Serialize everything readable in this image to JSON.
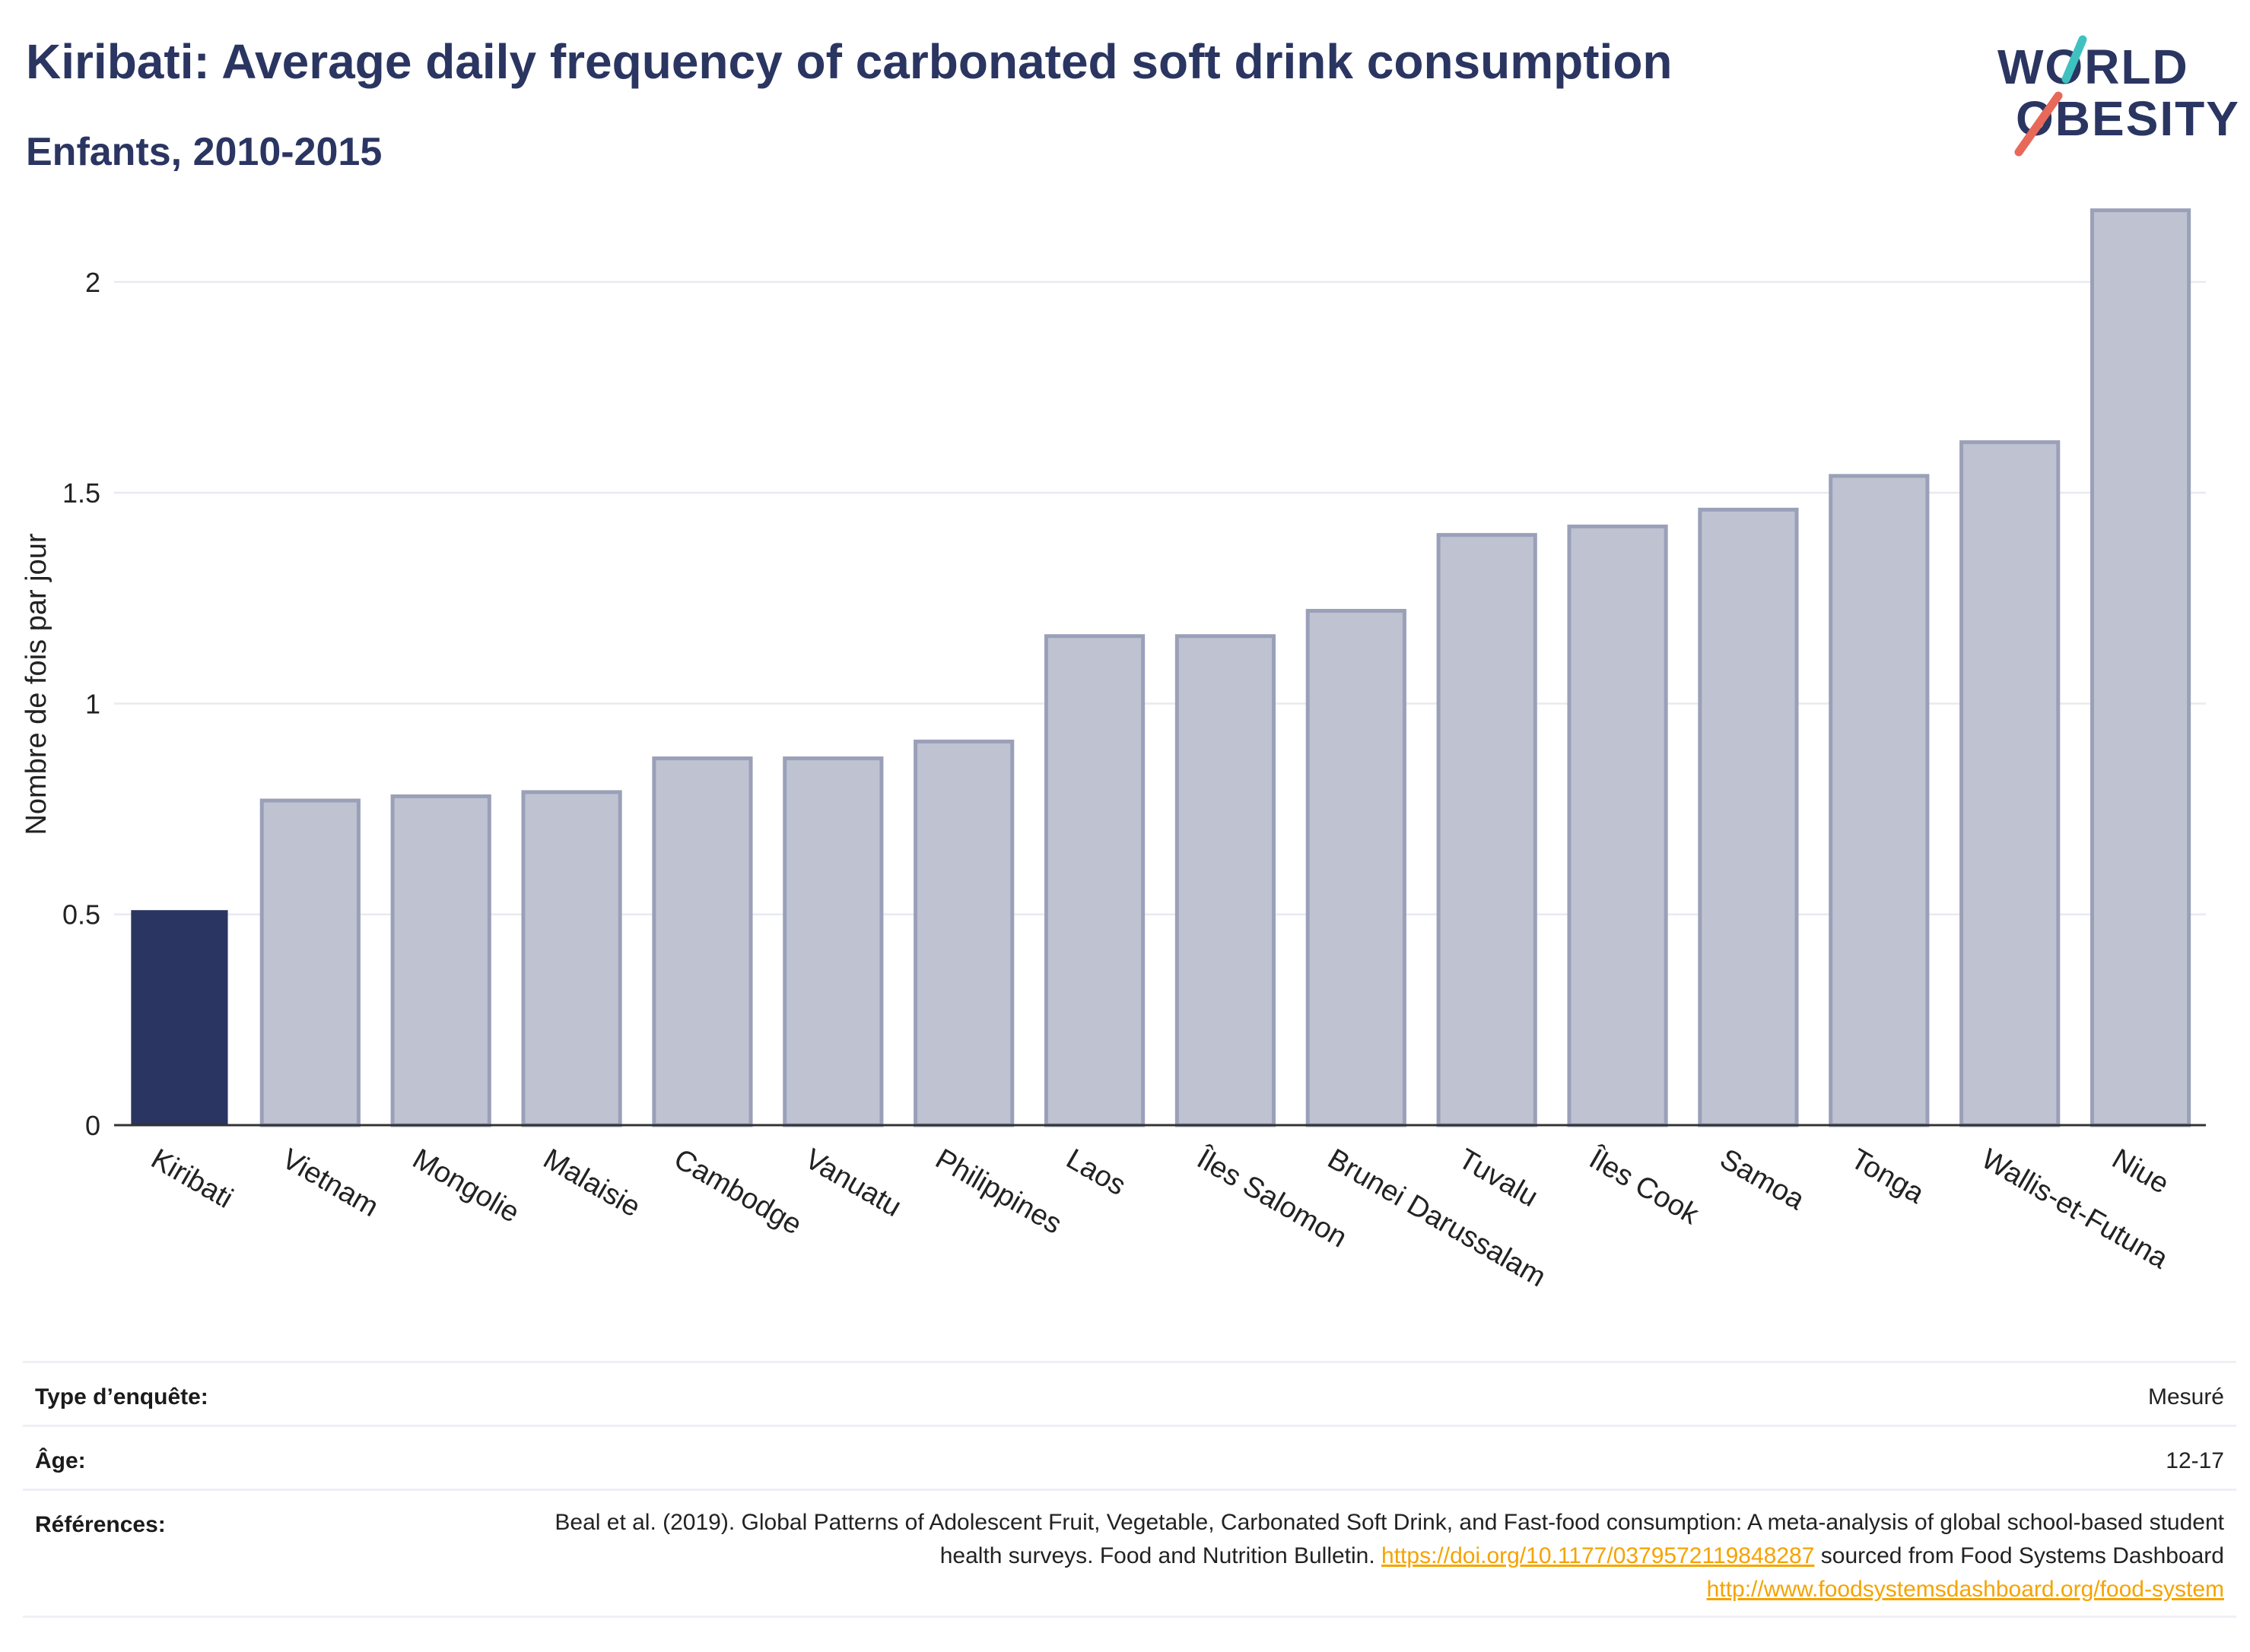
{
  "header": {
    "title": "Kiribati: Average daily frequency of carbonated soft drink consumption",
    "subtitle": "Enfants, 2010-2015"
  },
  "logo": {
    "line1": "WORLD",
    "line2": "OBESITY"
  },
  "colors": {
    "highlight": "#2a3561",
    "bar_fill": "#bfc3d1",
    "bar_stroke": "#9aa0b8",
    "grid": "#e8eaf0",
    "logo_teal": "#3fc1c0",
    "logo_coral": "#e8685a",
    "link": "#f5a300"
  },
  "chart_data": {
    "type": "bar",
    "title": "Kiribati: Average daily frequency of carbonated soft drink consumption",
    "subtitle": "Enfants, 2010-2015",
    "xlabel": "",
    "ylabel": "Nombre de fois par jour",
    "ylim": [
      0,
      2.2
    ],
    "yticks": [
      0,
      0.5,
      1,
      1.5,
      2
    ],
    "ytick_labels": [
      "0",
      "0.5",
      "1",
      "1.5",
      "2"
    ],
    "grid": true,
    "highlight": "Kiribati",
    "categories": [
      "Kiribati",
      "Vietnam",
      "Mongolie",
      "Malaisie",
      "Cambodge",
      "Vanuatu",
      "Philippines",
      "Laos",
      "Îles Salomon",
      "Brunei Darussalam",
      "Tuvalu",
      "Îles Cook",
      "Samoa",
      "Tonga",
      "Wallis-et-Futuna",
      "Niue"
    ],
    "values": [
      0.51,
      0.77,
      0.78,
      0.79,
      0.87,
      0.87,
      0.91,
      1.16,
      1.16,
      1.22,
      1.4,
      1.42,
      1.46,
      1.54,
      1.62,
      2.17
    ]
  },
  "meta": {
    "survey_label": "Type d’enquête:",
    "survey_value": "Mesuré",
    "age_label": "Âge:",
    "age_value": "12-17",
    "ref_label": "Références:",
    "ref_text_1": "Beal et al. (2019). Global Patterns of Adolescent Fruit, Vegetable, Carbonated Soft Drink, and Fast-food consumption: A meta-analysis of global school-based student health surveys. Food and Nutrition Bulletin. ",
    "ref_link_1": "https://doi.org/10.1177/0379572119848287",
    "ref_text_2": " sourced from Food Systems Dashboard ",
    "ref_link_2": "http://www.foodsystemsdashboard.org/food-system"
  }
}
